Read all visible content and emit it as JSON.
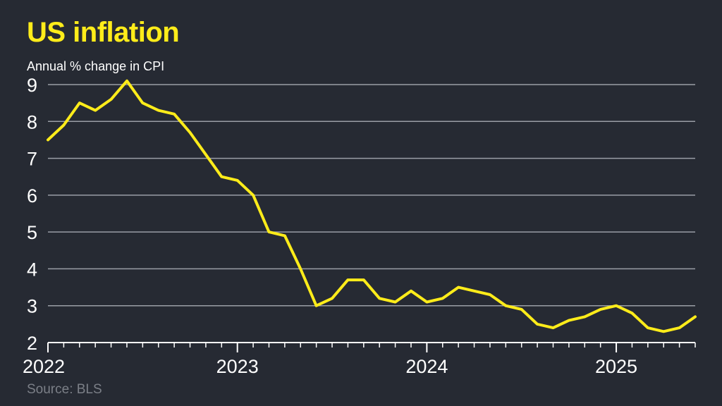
{
  "title": "US inflation",
  "subtitle": "Annual % change in CPI",
  "source": "Source: BLS",
  "colors": {
    "background": "#262a33",
    "line": "#ffec1a",
    "grid": "#9a9ea6",
    "title": "#ffec1a",
    "text": "#ffffff",
    "source": "#7b7f87"
  },
  "chart_data": {
    "type": "line",
    "title": "US inflation",
    "subtitle": "Annual % change in CPI",
    "xlabel": "",
    "ylabel": "",
    "ylim": [
      2,
      9
    ],
    "yticks": [
      "2",
      "3",
      "4",
      "5",
      "6",
      "7",
      "8",
      "9"
    ],
    "xticks": [
      "2022",
      "2023",
      "2024",
      "2025"
    ],
    "grid": true,
    "legend": "none",
    "x_start": "2022-01",
    "x": [
      "2022-01",
      "2022-02",
      "2022-03",
      "2022-04",
      "2022-05",
      "2022-06",
      "2022-07",
      "2022-08",
      "2022-09",
      "2022-10",
      "2022-11",
      "2022-12",
      "2023-01",
      "2023-02",
      "2023-03",
      "2023-04",
      "2023-05",
      "2023-06",
      "2023-07",
      "2023-08",
      "2023-09",
      "2023-10",
      "2023-11",
      "2023-12",
      "2024-01",
      "2024-02",
      "2024-03",
      "2024-04",
      "2024-05",
      "2024-06",
      "2024-07",
      "2024-08",
      "2024-09",
      "2024-10",
      "2024-11",
      "2024-12",
      "2025-01",
      "2025-02",
      "2025-03",
      "2025-04",
      "2025-05",
      "2025-06"
    ],
    "series": [
      {
        "values": [
          7.5,
          7.9,
          8.5,
          8.3,
          8.6,
          9.1,
          8.5,
          8.3,
          8.2,
          7.7,
          7.1,
          6.5,
          6.4,
          6.0,
          5.0,
          4.9,
          4.0,
          3.0,
          3.2,
          3.7,
          3.7,
          3.2,
          3.1,
          3.4,
          3.1,
          3.2,
          3.5,
          3.4,
          3.3,
          3.0,
          2.9,
          2.5,
          2.4,
          2.6,
          2.7,
          2.9,
          3.0,
          2.8,
          2.4,
          2.3,
          2.4,
          2.7
        ]
      }
    ]
  }
}
